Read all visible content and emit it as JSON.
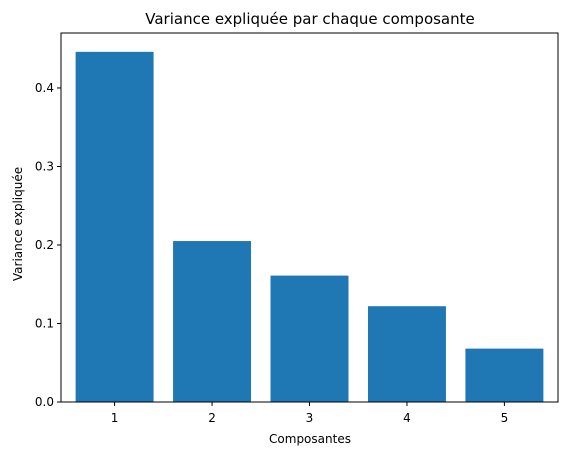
{
  "chart_data": {
    "type": "bar",
    "title": "Variance expliquée par chaque composante",
    "xlabel": "Composantes",
    "ylabel": "Variance expliquée",
    "categories": [
      "1",
      "2",
      "3",
      "4",
      "5"
    ],
    "values": [
      0.446,
      0.205,
      0.161,
      0.122,
      0.068
    ],
    "ylim": [
      0,
      0.47
    ],
    "yticks": [
      0.0,
      0.1,
      0.2,
      0.3,
      0.4
    ],
    "ytick_labels": [
      "0.0",
      "0.1",
      "0.2",
      "0.3",
      "0.4"
    ],
    "grid": false,
    "bar_color": "#1f77b4"
  }
}
